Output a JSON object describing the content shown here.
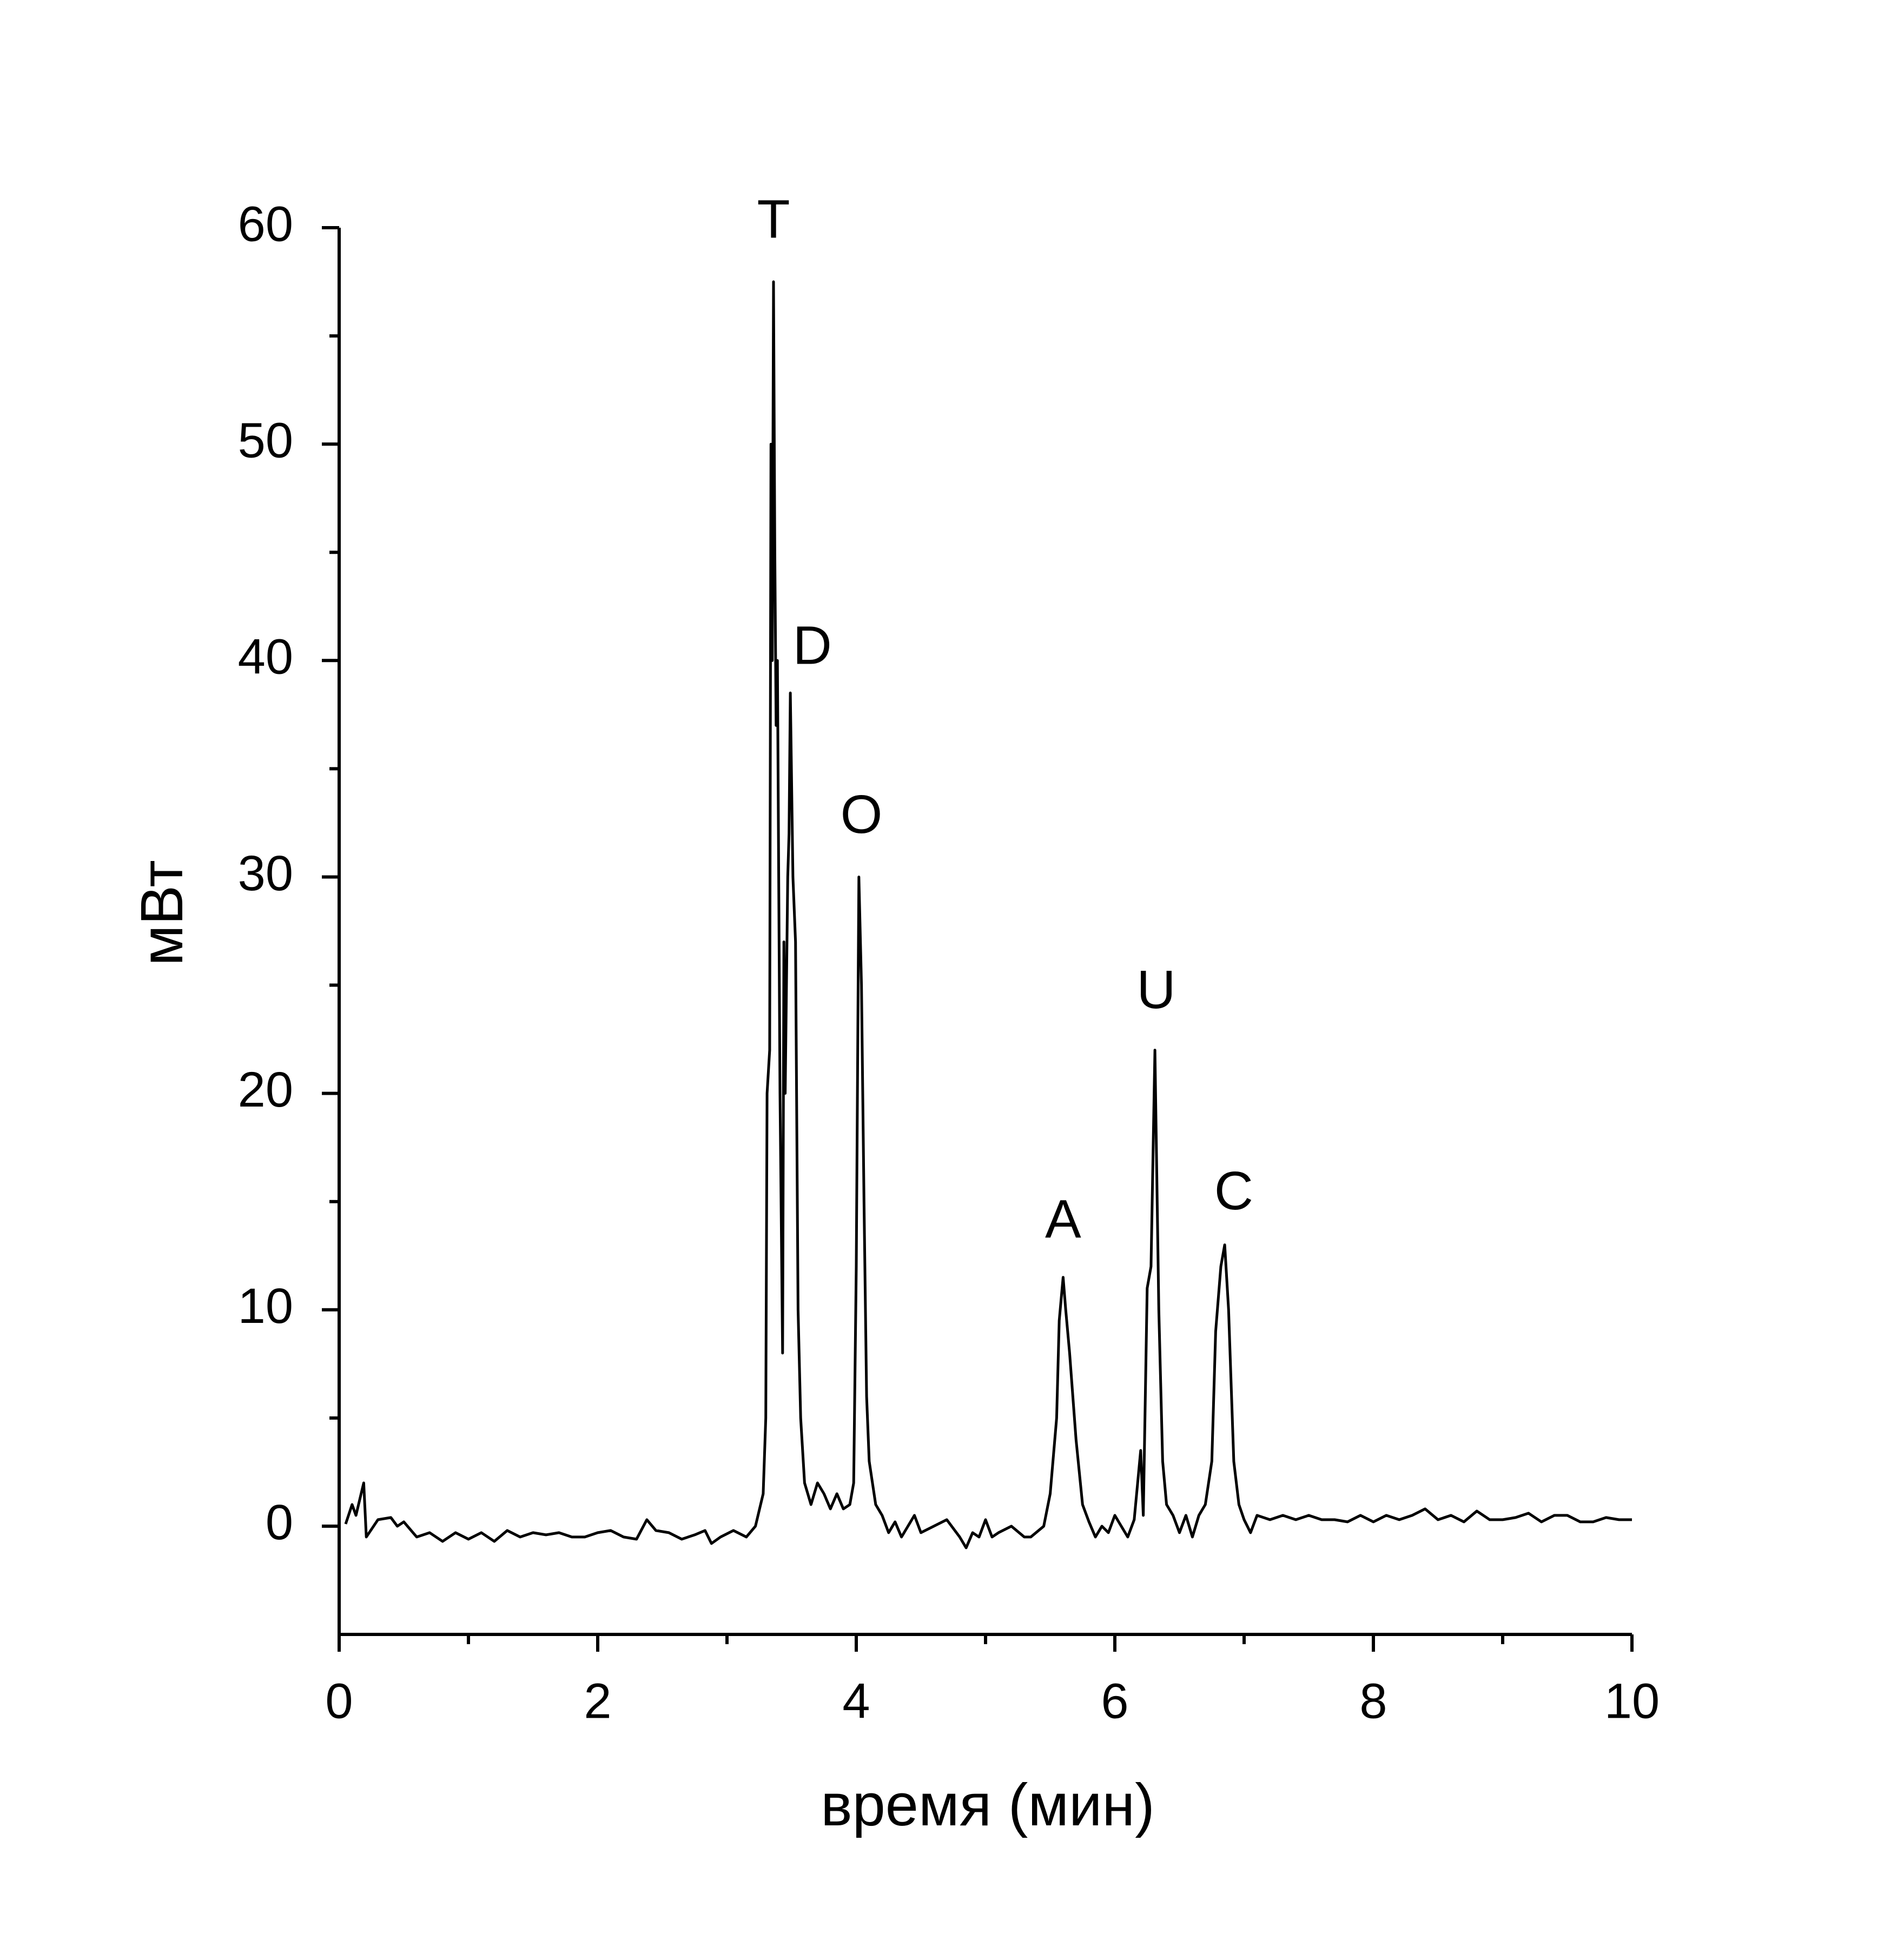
{
  "chart_data": {
    "type": "line",
    "xlabel": "время (мин)",
    "ylabel": "мВт",
    "xlim": [
      0,
      10
    ],
    "ylim": [
      -5,
      60
    ],
    "xticks": [
      0,
      2,
      4,
      6,
      8,
      10
    ],
    "yticks": [
      0,
      10,
      20,
      30,
      40,
      50,
      60
    ],
    "xminorticks": [
      1,
      3,
      5,
      7,
      9
    ],
    "yminorticks": [
      5,
      15,
      25,
      35,
      45,
      55
    ],
    "x": [
      0.05,
      0.1,
      0.13,
      0.17,
      0.19,
      0.21,
      0.3,
      0.4,
      0.45,
      0.5,
      0.6,
      0.7,
      0.8,
      0.9,
      1.0,
      1.1,
      1.2,
      1.3,
      1.4,
      1.5,
      1.6,
      1.7,
      1.8,
      1.9,
      2.0,
      2.1,
      2.2,
      2.3,
      2.38,
      2.45,
      2.55,
      2.65,
      2.75,
      2.83,
      2.88,
      2.95,
      3.05,
      3.15,
      3.22,
      3.28,
      3.3,
      3.31,
      3.33,
      3.34,
      3.35,
      3.36,
      3.37,
      3.38,
      3.39,
      3.41,
      3.43,
      3.44,
      3.45,
      3.47,
      3.48,
      3.49,
      3.51,
      3.53,
      3.55,
      3.57,
      3.6,
      3.65,
      3.7,
      3.75,
      3.8,
      3.85,
      3.9,
      3.95,
      3.98,
      4.0,
      4.02,
      4.04,
      4.06,
      4.08,
      4.1,
      4.15,
      4.2,
      4.25,
      4.3,
      4.35,
      4.45,
      4.5,
      4.6,
      4.7,
      4.8,
      4.85,
      4.9,
      4.95,
      5.0,
      5.05,
      5.1,
      5.2,
      5.3,
      5.35,
      5.45,
      5.5,
      5.55,
      5.57,
      5.6,
      5.62,
      5.65,
      5.7,
      5.75,
      5.8,
      5.85,
      5.9,
      5.95,
      6.0,
      6.05,
      6.1,
      6.15,
      6.2,
      6.22,
      6.25,
      6.28,
      6.31,
      6.34,
      6.37,
      6.4,
      6.45,
      6.5,
      6.55,
      6.6,
      6.65,
      6.7,
      6.75,
      6.78,
      6.82,
      6.85,
      6.88,
      6.92,
      6.96,
      7.0,
      7.05,
      7.1,
      7.2,
      7.3,
      7.4,
      7.5,
      7.6,
      7.7,
      7.8,
      7.9,
      8.0,
      8.1,
      8.2,
      8.3,
      8.4,
      8.5,
      8.6,
      8.7,
      8.8,
      8.9,
      9.0,
      9.1,
      9.2,
      9.3,
      9.4,
      9.5,
      9.6,
      9.7,
      9.8,
      9.9,
      10.0
    ],
    "series": [
      {
        "color": "#000000",
        "values": [
          0.1,
          1.0,
          0.5,
          1.5,
          2.0,
          -0.5,
          0.3,
          0.4,
          0.0,
          0.2,
          -0.5,
          -0.3,
          -0.7,
          -0.3,
          -0.6,
          -0.3,
          -0.7,
          -0.2,
          -0.5,
          -0.3,
          -0.4,
          -0.3,
          -0.5,
          -0.5,
          -0.3,
          -0.2,
          -0.5,
          -0.6,
          0.3,
          -0.2,
          -0.3,
          -0.6,
          -0.4,
          -0.2,
          -0.8,
          -0.5,
          -0.2,
          -0.5,
          0.0,
          1.5,
          5,
          20,
          22,
          50,
          40,
          57.5,
          45,
          37,
          40,
          20,
          8,
          27,
          20,
          30,
          32,
          38.5,
          30,
          27,
          10,
          5,
          2,
          1,
          2,
          1.5,
          0.8,
          1.5,
          0.8,
          1.0,
          2,
          12,
          30,
          25,
          15,
          6,
          3,
          1,
          0.5,
          -0.3,
          0.2,
          -0.5,
          0.5,
          -0.3,
          0.0,
          0.3,
          -0.5,
          -1.0,
          -0.3,
          -0.5,
          0.3,
          -0.5,
          -0.3,
          0.0,
          -0.5,
          -0.5,
          0.0,
          1.5,
          5,
          9.5,
          11.5,
          10,
          8,
          4,
          1,
          0.2,
          -0.5,
          0.0,
          -0.3,
          0.5,
          0.0,
          -0.5,
          0.3,
          3.5,
          0.5,
          11,
          12,
          22,
          10,
          3,
          1,
          0.5,
          -0.3,
          0.5,
          -0.5,
          0.5,
          1,
          3,
          9,
          12,
          13,
          10,
          3,
          1,
          0.3,
          -0.3,
          0.5,
          0.3,
          0.5,
          0.3,
          0.5,
          0.3,
          0.3,
          0.2,
          0.5,
          0.2,
          0.5,
          0.3,
          0.5,
          0.8,
          0.3,
          0.5,
          0.2,
          0.7,
          0.3,
          0.3,
          0.4,
          0.6,
          0.2,
          0.5,
          0.5,
          0.2,
          0.2,
          0.4,
          0.3,
          0.3
        ]
      }
    ],
    "annotations": [
      {
        "text": "T",
        "x": 3.36,
        "y": 60.2
      },
      {
        "text": "D",
        "x": 3.66,
        "y": 40.5
      },
      {
        "text": "O",
        "x": 4.04,
        "y": 32.7
      },
      {
        "text": "A",
        "x": 5.6,
        "y": 14
      },
      {
        "text": "U",
        "x": 6.32,
        "y": 24.6
      },
      {
        "text": "C",
        "x": 6.92,
        "y": 15.3
      }
    ]
  }
}
